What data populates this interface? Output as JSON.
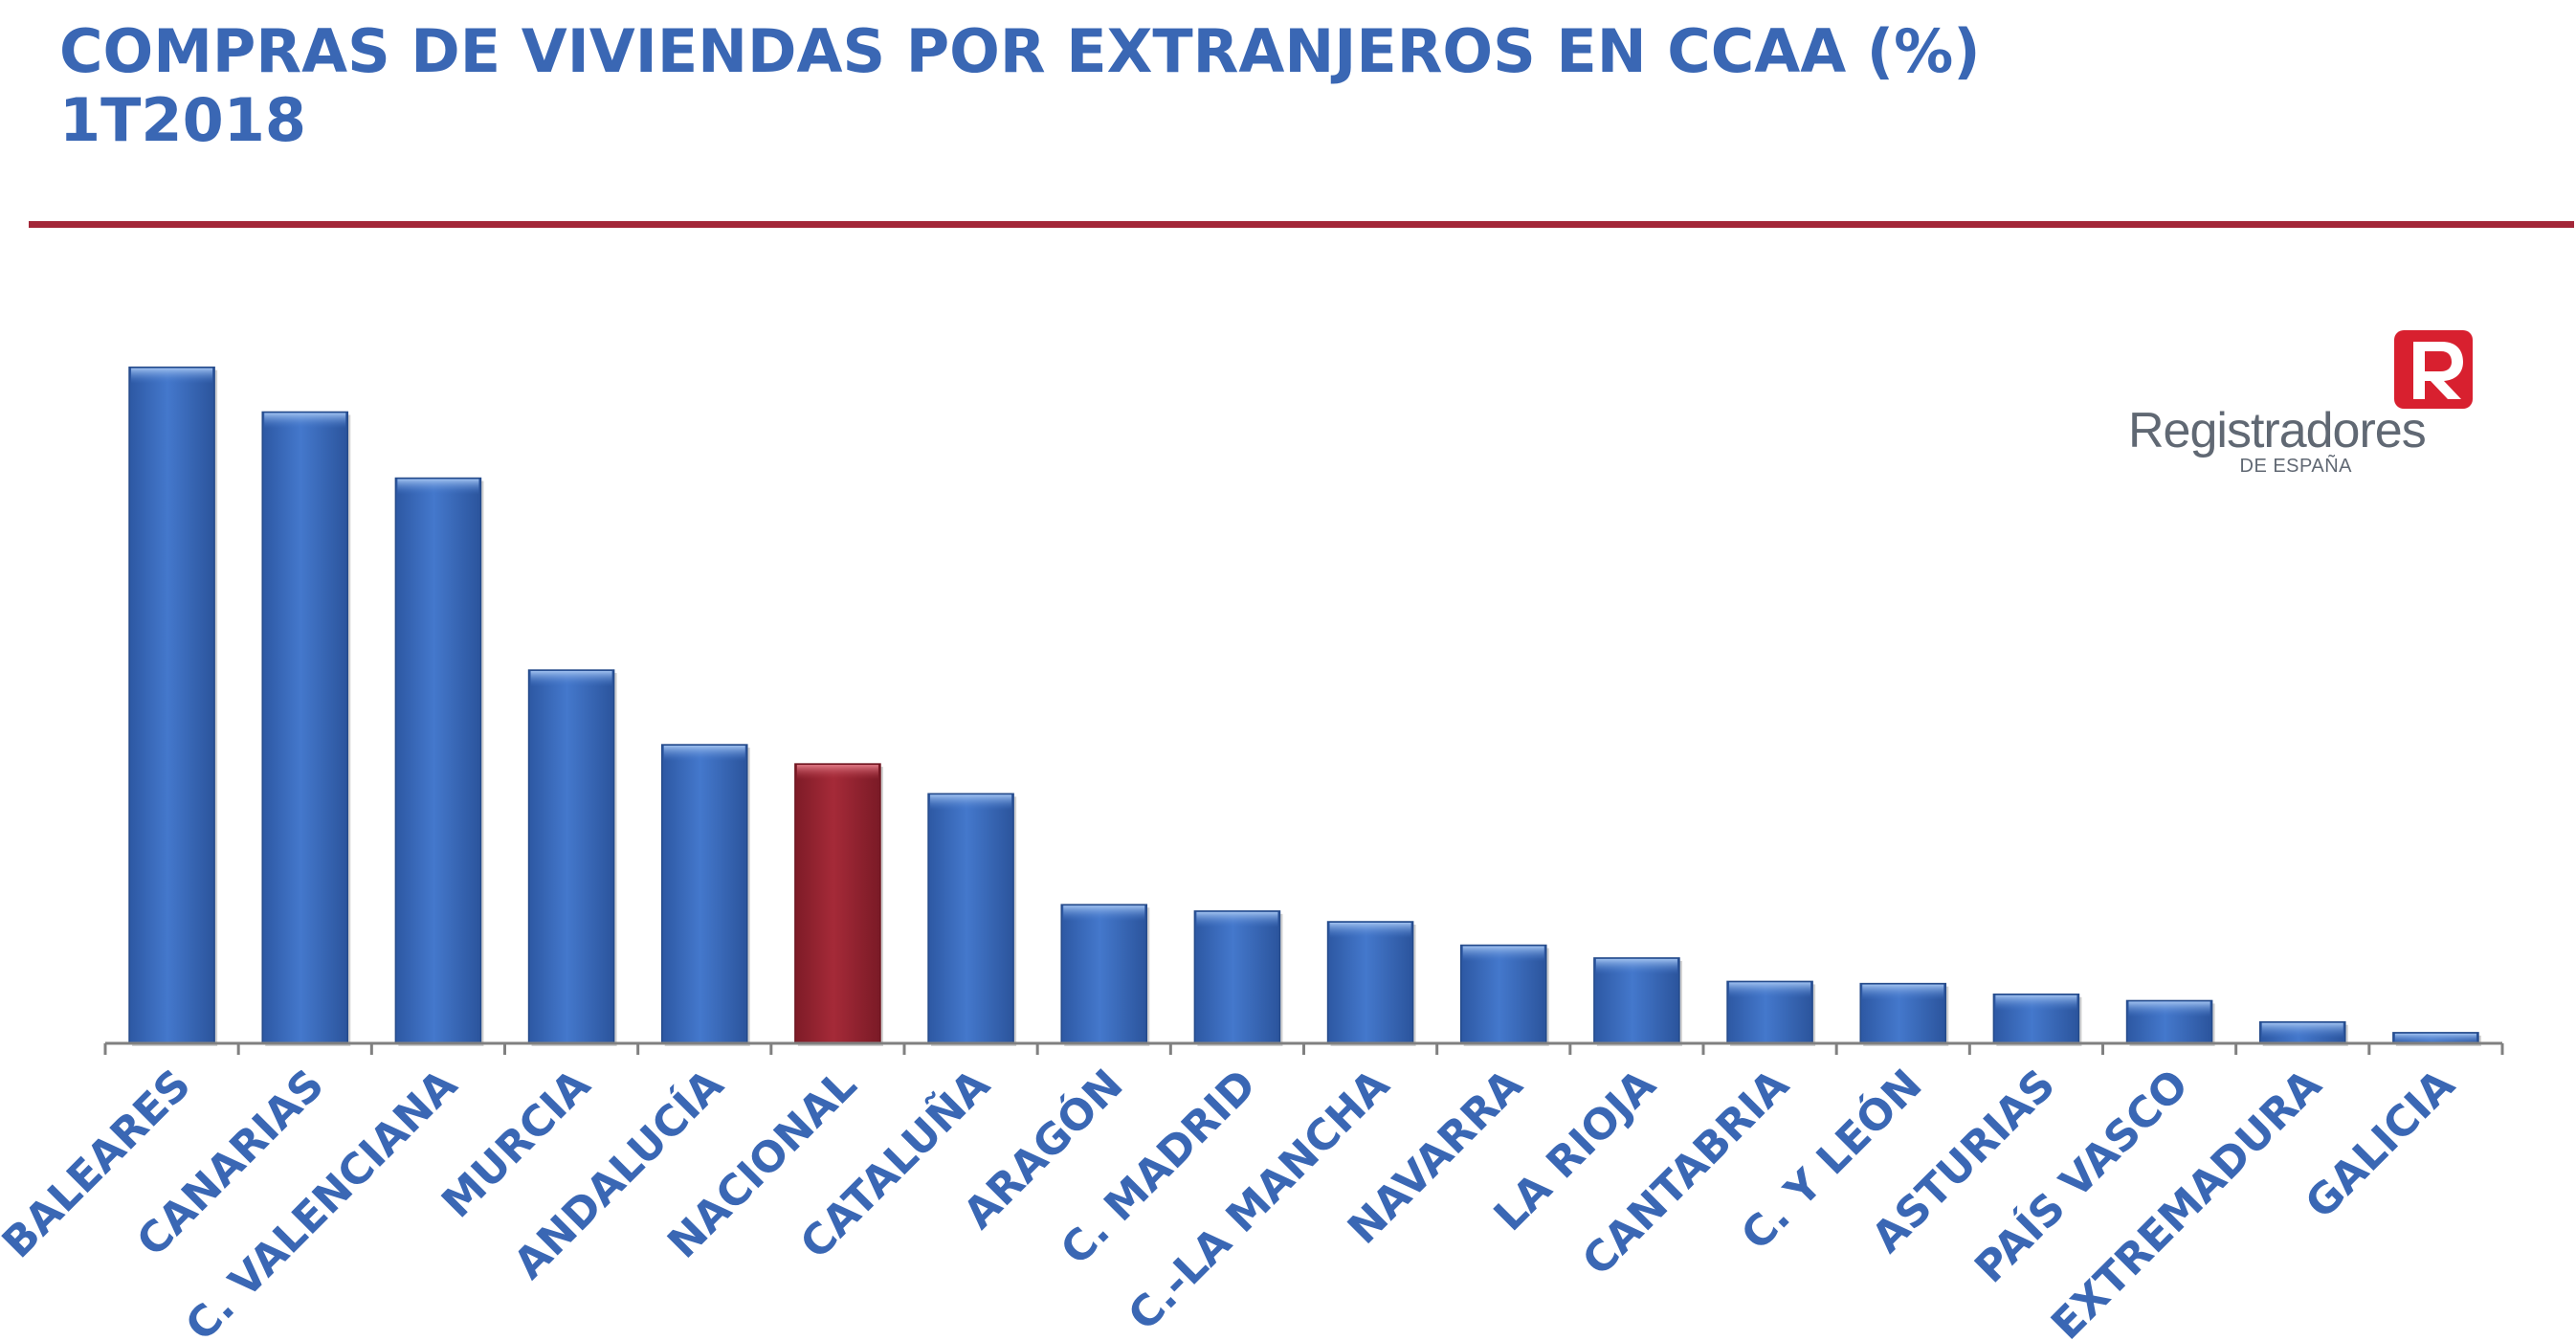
{
  "title": {
    "line1": "COMPRAS DE VIVIENDAS POR EXTRANJEROS EN CCAA (%)",
    "line2": "1T2018"
  },
  "logo": {
    "name": "Registradores",
    "sub": "DE ESPAÑA",
    "icon": "registradores-r-logo"
  },
  "colors": {
    "title": "#3a67b4",
    "rule": "#a32638",
    "bar": "#3e6fc1",
    "highlight_bar": "#9b2432",
    "axis": "#808080"
  },
  "chart_data": {
    "type": "bar",
    "title": "COMPRAS DE VIVIENDAS POR EXTRANJEROS EN CCAA (%)",
    "subtitle": "1T2018",
    "xlabel": "",
    "ylabel": "",
    "ylim": [
      0,
      35
    ],
    "grid": false,
    "categories": [
      "BALEARES",
      "CANARIAS",
      "C. VALENCIANA",
      "MURCIA",
      "ANDALUCÍA",
      "NACIONAL",
      "CATALUÑA",
      "ARAGÓN",
      "C. MADRID",
      "C.-LA MANCHA",
      "NAVARRA",
      "LA RIOJA",
      "CANTABRIA",
      "C. Y LEÓN",
      "ASTURIAS",
      "PAÍS VASCO",
      "EXTREMADURA",
      "GALICIA"
    ],
    "values": [
      31.7,
      29.6,
      26.5,
      17.5,
      14.0,
      13.1,
      11.7,
      6.5,
      6.2,
      5.7,
      4.6,
      4.0,
      2.9,
      2.8,
      2.3,
      2.0,
      1.0,
      0.5
    ],
    "highlight": "NACIONAL"
  }
}
